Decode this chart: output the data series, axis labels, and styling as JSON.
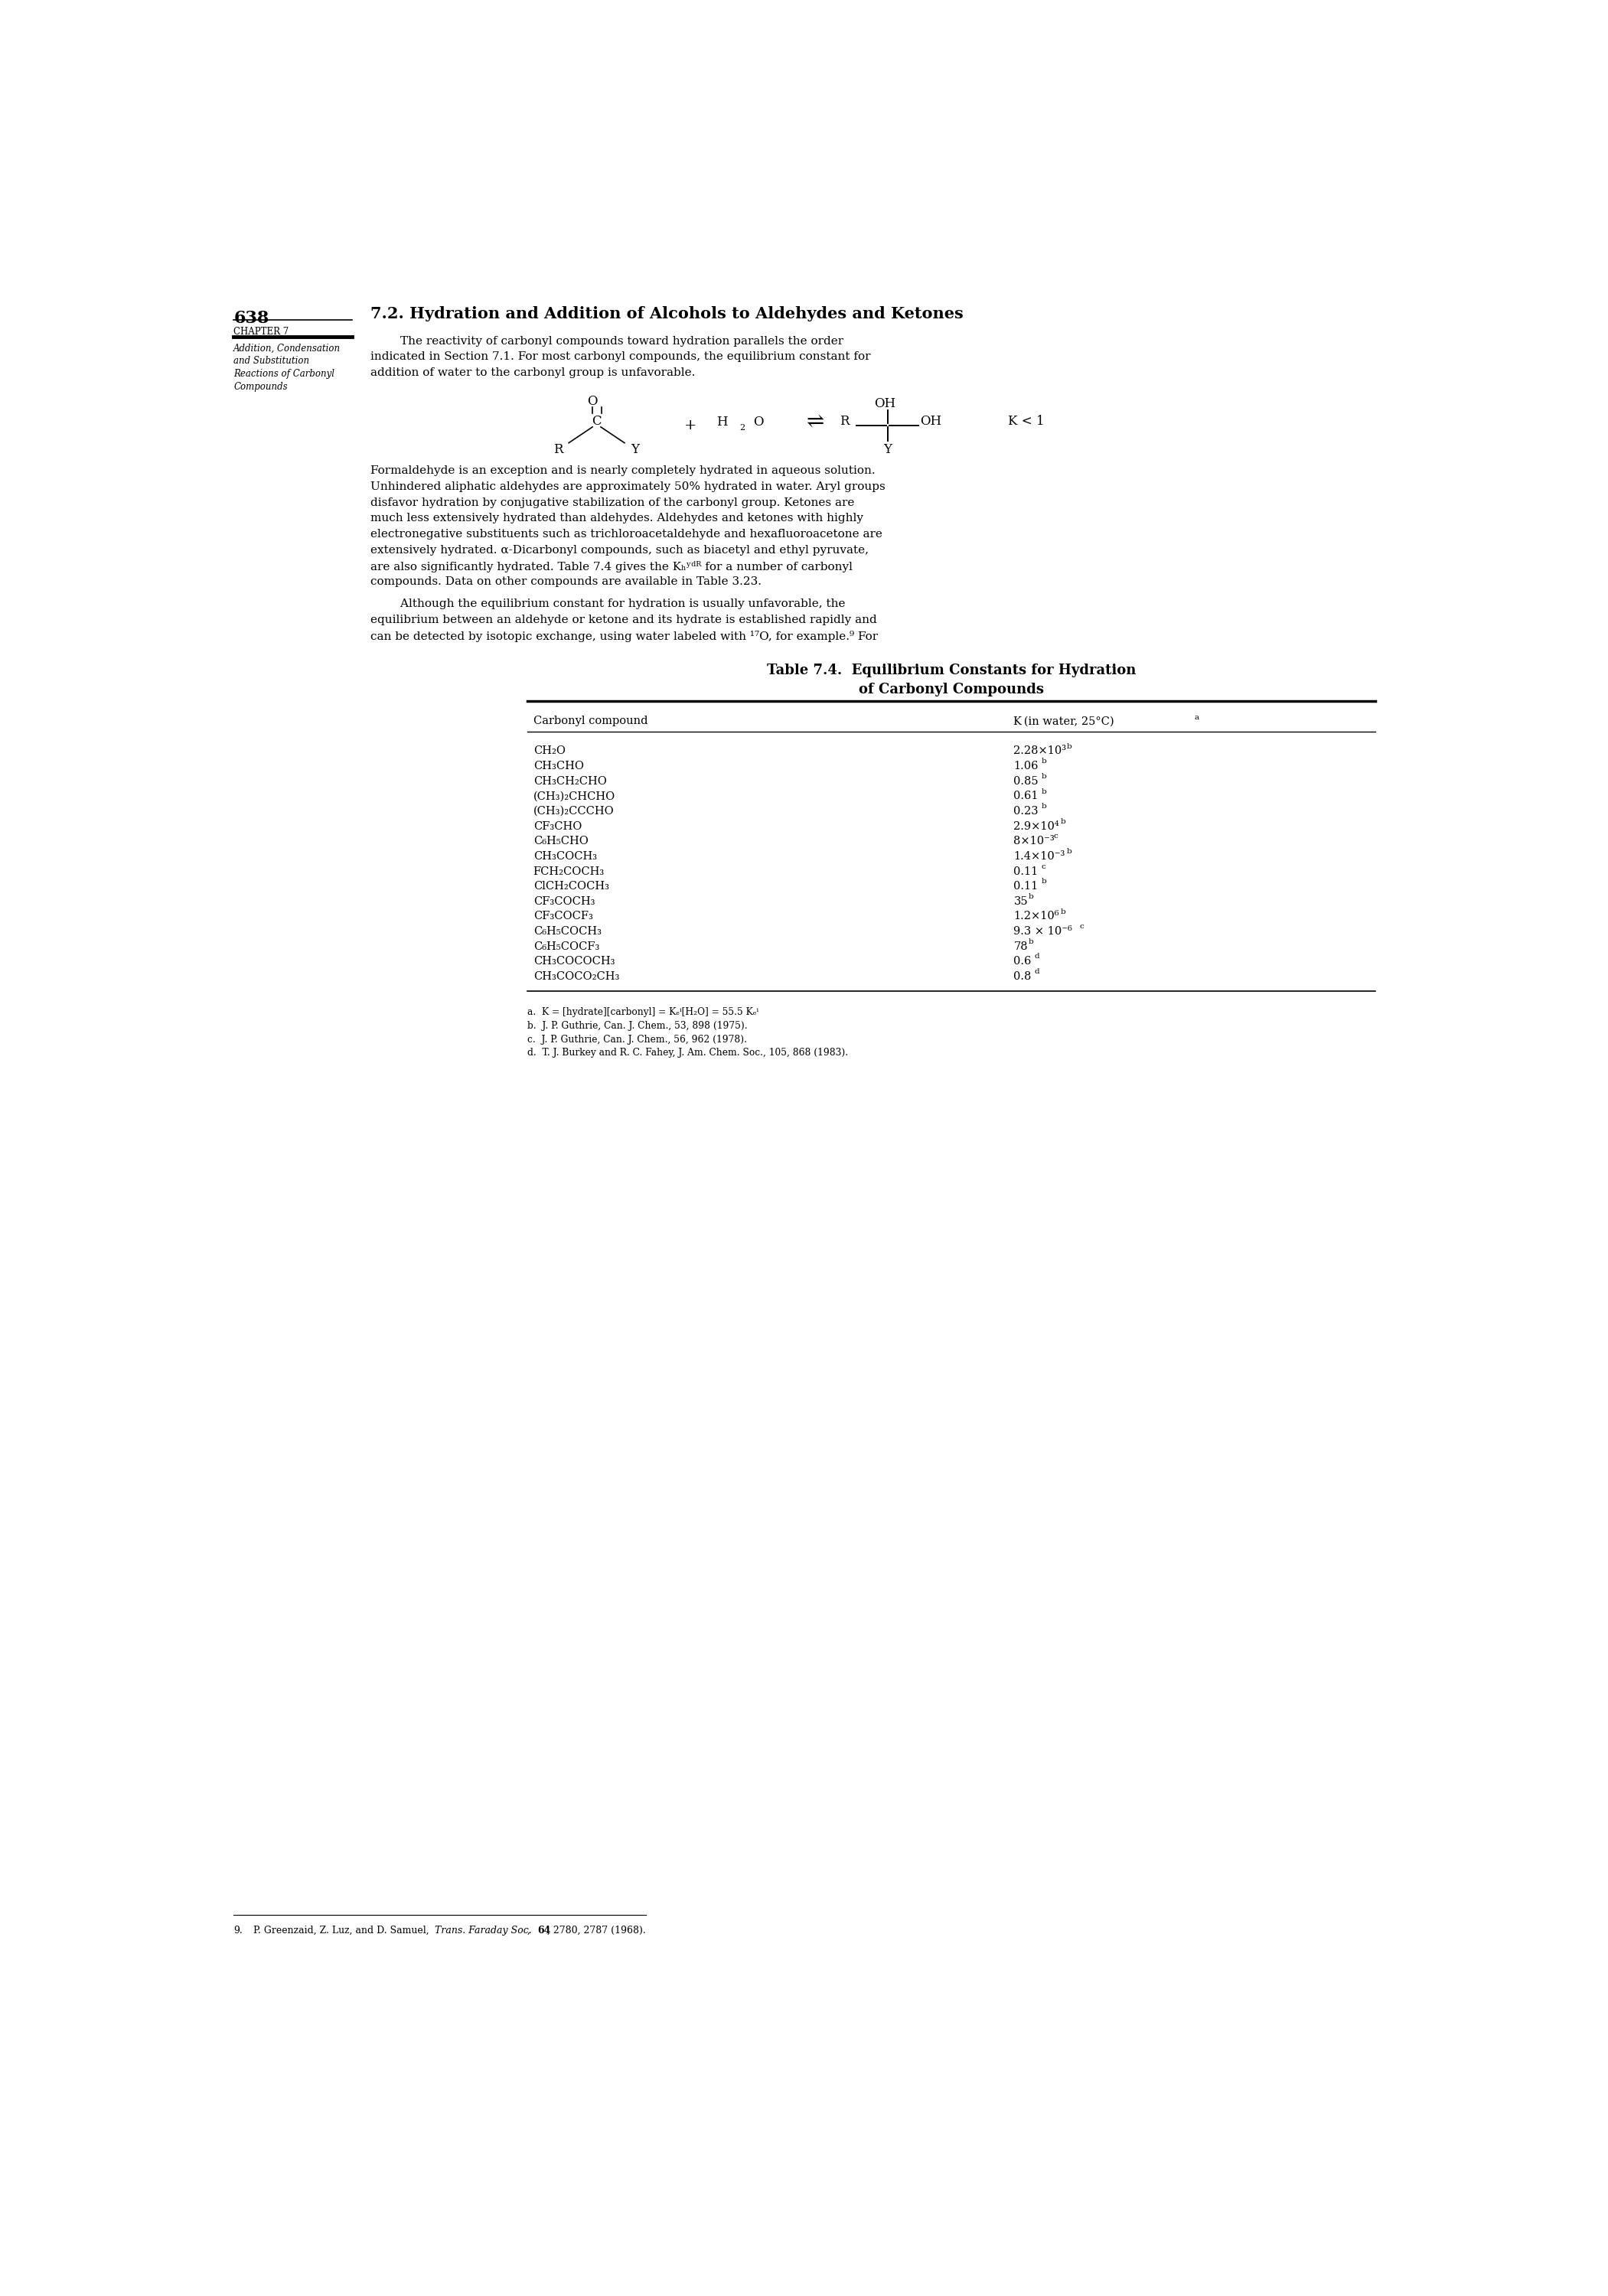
{
  "page_number": "638",
  "chapter_label": "CHAPTER 7",
  "sidebar_italic_lines": [
    "Addition, Condensation",
    "and Substitution",
    "Reactions of Carbonyl",
    "Compounds"
  ],
  "section_title": "7.2. Hydration and Addition of Alcohols to Aldehydes and Ketones",
  "p1_lines": [
    "        The reactivity of carbonyl compounds toward hydration parallels the order",
    "indicated in Section 7.1. For most carbonyl compounds, the equilibrium constant for",
    "addition of water to the carbonyl group is unfavorable."
  ],
  "p2_lines": [
    "Formaldehyde is an exception and is nearly completely hydrated in aqueous solution.",
    "Unhindered aliphatic aldehydes are approximately 50% hydrated in water. Aryl groups",
    "disfavor hydration by conjugative stabilization of the carbonyl group. Ketones are",
    "much less extensively hydrated than aldehydes. Aldehydes and ketones with highly",
    "electronegative substituents such as trichloroacetaldehyde and hexafluoroacetone are",
    "extensively hydrated. α-Dicarbonyl compounds, such as biacetyl and ethyl pyruvate,",
    "are also significantly hydrated. Table 7.4 gives the Kₕʸᵈᴿ for a number of carbonyl",
    "compounds. Data on other compounds are available in Table 3.23."
  ],
  "p3_lines": [
    "        Although the equilibrium constant for hydration is usually unfavorable, the",
    "equilibrium between an aldehyde or ketone and its hydrate is established rapidly and",
    "can be detected by isotopic exchange, using water labeled with ¹⁷O, for example.⁹ For"
  ],
  "table_title1": "Table 7.4.  Equilibrium Constants for Hydration",
  "table_title2": "of Carbonyl Compounds",
  "col_header1": "Carbonyl compound",
  "col_header2": "K (in water, 25°C)ᵃ",
  "compound_names": [
    "CH₂O",
    "CH₃CHO",
    "CH₃CH₂CHO",
    "(CH₃)₂CHCHO",
    "(CH₃)₂CCCHO",
    "CF₃CHO",
    "C₆H₅CHO",
    "CH₃COCH₃",
    "FCH₂COCH₃",
    "ClCH₂COCH₃",
    "CF₃COCH₃",
    "CF₃COCF₃",
    "C₆H₅COCH₃",
    "C₆H₅COCF₃",
    "CH₃COCOCH₃",
    "CH₃COCO₂CH₃"
  ],
  "k_values": [
    "2.28×10³",
    "1.06",
    "0.85",
    "0.61",
    "0.23",
    "2.9×10⁴",
    "8×10⁻³",
    "1.4×10⁻³",
    "0.11",
    "0.11",
    "35",
    "1.2×10⁶",
    "9.3 × 10⁻⁶",
    "78",
    "0.6",
    "0.8"
  ],
  "k_sups": [
    "b",
    "b",
    "b",
    "b",
    "b",
    "b",
    "c",
    "b",
    "c",
    "b",
    "b",
    "b",
    "c",
    "b",
    "d",
    "d"
  ],
  "footnote_lines": [
    "a.  K = [hydrate][carbonyl] = Kₑⁱ[H₂O] = 55.5 Kₑⁱ",
    "b.  J. P. Guthrie, Can. J. Chem., 53, 898 (1975).",
    "c.  J. P. Guthrie, Can. J. Chem., 56, 962 (1978).",
    "d.  T. J. Burkey and R. C. Fahey, J. Am. Chem. Soc., 105, 868 (1983)."
  ],
  "bottom_footnote": "9.  P. Greenzaid, Z. Luz, and D. Samuel, Trans. Faraday Soc., 64, 2780, 2787 (1968).",
  "bg_color": "#ffffff"
}
